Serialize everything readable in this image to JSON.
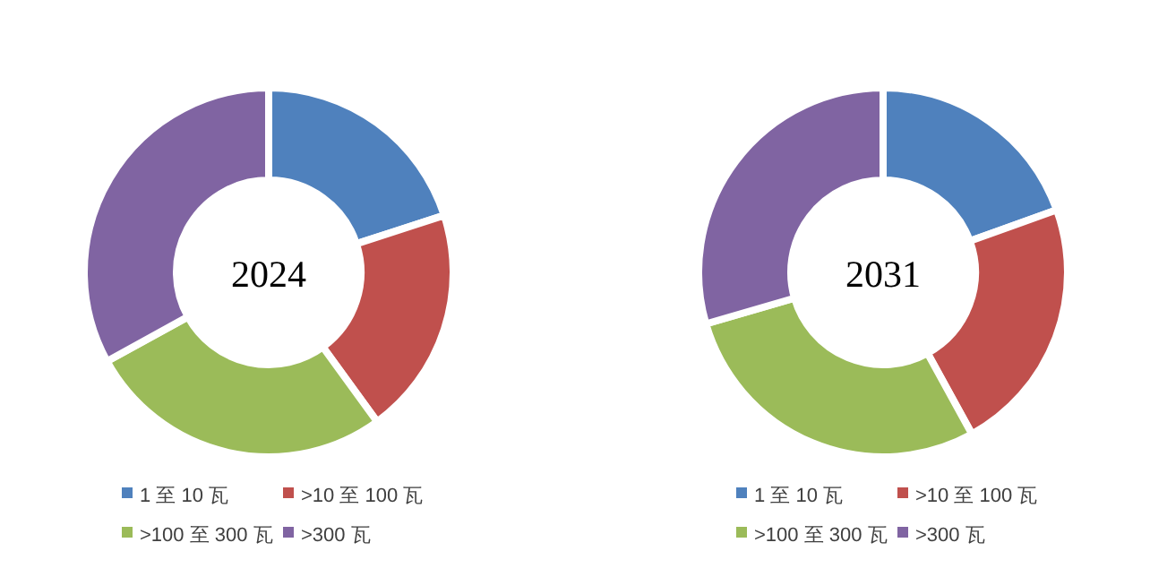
{
  "chart_data": [
    {
      "type": "donut",
      "title": "2024",
      "categories": [
        "1 至 10 瓦",
        ">10 至 100 瓦",
        ">100 至 300 瓦",
        ">300 瓦"
      ],
      "values": [
        20,
        20,
        27,
        33
      ],
      "colors": [
        "#4f81bd",
        "#c0504d",
        "#9bbb59",
        "#8064a2"
      ],
      "legend": "bottom"
    },
    {
      "type": "donut",
      "title": "2031",
      "categories": [
        "1 至 10 瓦",
        ">10 至 100 瓦",
        ">100 至 300 瓦",
        ">300 瓦"
      ],
      "values": [
        19.5,
        22.5,
        28.5,
        29.5
      ],
      "colors": [
        "#4f81bd",
        "#c0504d",
        "#9bbb59",
        "#8064a2"
      ],
      "legend": "bottom"
    }
  ]
}
